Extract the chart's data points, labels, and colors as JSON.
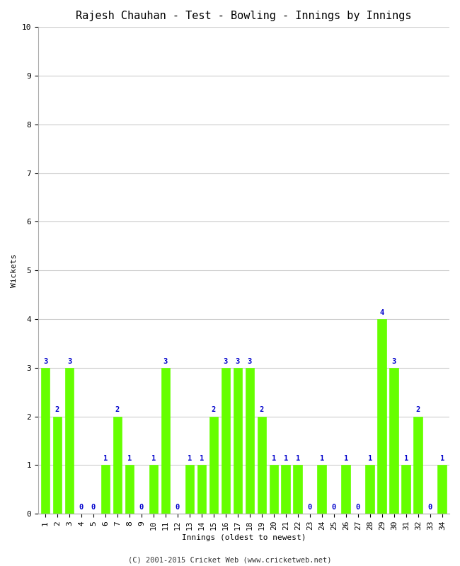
{
  "title": "Rajesh Chauhan - Test - Bowling - Innings by Innings",
  "xlabel": "Innings (oldest to newest)",
  "ylabel": "Wickets",
  "footer": "(C) 2001-2015 Cricket Web (www.cricketweb.net)",
  "innings": [
    1,
    2,
    3,
    4,
    5,
    6,
    7,
    8,
    9,
    10,
    11,
    12,
    13,
    14,
    15,
    16,
    17,
    18,
    19,
    20,
    21,
    22,
    23,
    24,
    25,
    26,
    27,
    28,
    29,
    30,
    31,
    32,
    33,
    34
  ],
  "wickets": [
    3,
    2,
    3,
    0,
    0,
    1,
    2,
    1,
    0,
    1,
    3,
    0,
    1,
    1,
    2,
    3,
    3,
    3,
    2,
    1,
    1,
    1,
    0,
    1,
    0,
    1,
    0,
    1,
    4,
    3,
    1,
    2,
    0,
    1
  ],
  "bar_color": "#66ff00",
  "bar_edge_color": "#66ff00",
  "label_color": "#0000cc",
  "title_fontsize": 11,
  "label_fontsize": 8,
  "tick_fontsize": 8,
  "annotation_fontsize": 7.5,
  "bg_color": "#ffffff",
  "grid_color": "#cccccc",
  "ylim": [
    0,
    10
  ],
  "yticks": [
    0,
    1,
    2,
    3,
    4,
    5,
    6,
    7,
    8,
    9,
    10
  ]
}
